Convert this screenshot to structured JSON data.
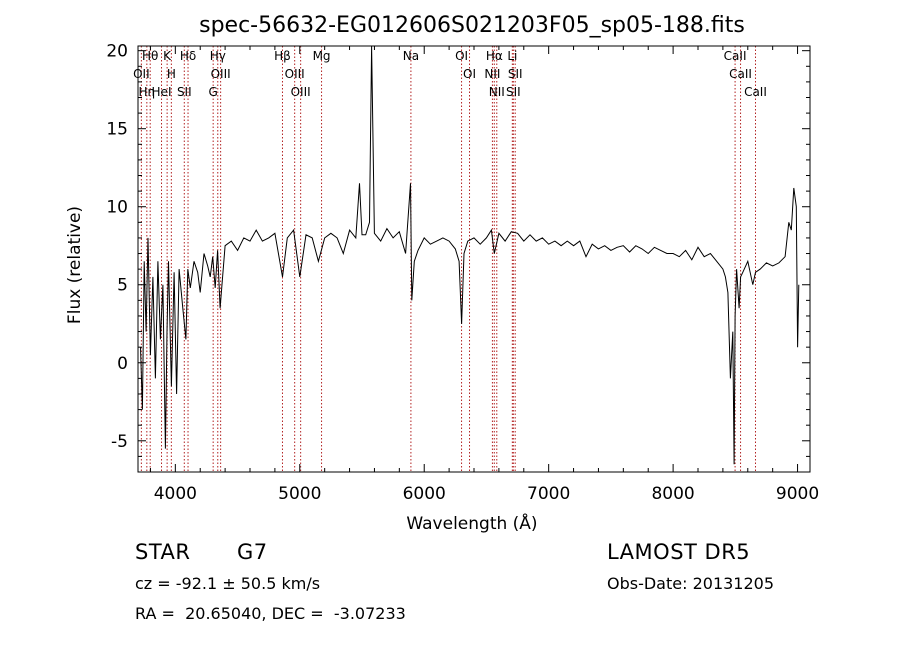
{
  "chart_data": {
    "type": "line",
    "title": "spec-56632-EG012606S021203F05_sp05-188.fits",
    "xlabel": "Wavelength (Å)",
    "ylabel": "Flux (relative)",
    "xlim": [
      3700,
      9100
    ],
    "ylim": [
      -7,
      20.3
    ],
    "xticks": [
      4000,
      5000,
      6000,
      7000,
      8000,
      9000
    ],
    "yticks": [
      -5,
      0,
      5,
      10,
      15,
      20
    ],
    "grid": false,
    "line_color": "#000000",
    "marker_color": "#b22222",
    "series": [
      {
        "x": [
          3720,
          3735,
          3750,
          3765,
          3780,
          3800,
          3820,
          3840,
          3860,
          3880,
          3900,
          3920,
          3933,
          3945,
          3968,
          3990,
          4010,
          4030,
          4060,
          4085,
          4100,
          4120,
          4150,
          4180,
          4200,
          4230,
          4260,
          4280,
          4300,
          4320,
          4340,
          4360,
          4400,
          4450,
          4500,
          4550,
          4600,
          4650,
          4700,
          4750,
          4800,
          4861,
          4900,
          4950,
          5000,
          5050,
          5100,
          5150,
          5200,
          5250,
          5300,
          5350,
          5400,
          5450,
          5480,
          5500,
          5530,
          5560,
          5577,
          5600,
          5650,
          5700,
          5750,
          5800,
          5850,
          5890,
          5900,
          5920,
          5950,
          6000,
          6050,
          6100,
          6150,
          6200,
          6250,
          6280,
          6300,
          6320,
          6350,
          6400,
          6450,
          6500,
          6540,
          6563,
          6600,
          6650,
          6700,
          6750,
          6800,
          6850,
          6900,
          6950,
          7000,
          7050,
          7100,
          7150,
          7200,
          7250,
          7300,
          7350,
          7400,
          7450,
          7500,
          7550,
          7600,
          7650,
          7700,
          7750,
          7800,
          7850,
          7900,
          7950,
          8000,
          8050,
          8100,
          8150,
          8200,
          8250,
          8300,
          8350,
          8400,
          8420,
          8440,
          8460,
          8480,
          8490,
          8498,
          8510,
          8530,
          8542,
          8560,
          8600,
          8640,
          8662,
          8700,
          8750,
          8800,
          8850,
          8900,
          8930,
          8950,
          8970,
          8990,
          9000,
          9010
        ],
        "y": [
          1.0,
          -3.0,
          6.5,
          2.0,
          8.0,
          0.5,
          5.5,
          -1.0,
          6.5,
          1.5,
          5.0,
          -5.5,
          2.0,
          6.5,
          -1.5,
          5.8,
          -2.0,
          6.0,
          3.5,
          1.5,
          6.0,
          4.8,
          6.5,
          5.8,
          4.5,
          7.0,
          6.2,
          5.5,
          6.8,
          4.8,
          7.2,
          3.5,
          7.5,
          7.8,
          7.2,
          8.0,
          7.8,
          8.5,
          7.8,
          8.0,
          8.3,
          5.5,
          8.0,
          8.5,
          5.5,
          8.2,
          8.0,
          6.5,
          8.0,
          8.3,
          8.0,
          7.0,
          8.5,
          8.0,
          11.5,
          8.2,
          8.2,
          9.0,
          20.3,
          8.3,
          7.8,
          8.6,
          8.0,
          8.4,
          7.0,
          11.5,
          4.0,
          6.5,
          7.2,
          8.0,
          7.6,
          7.8,
          8.0,
          7.8,
          7.3,
          6.5,
          2.5,
          7.0,
          7.8,
          8.0,
          7.6,
          8.0,
          8.5,
          7.0,
          8.3,
          7.8,
          8.4,
          8.3,
          7.8,
          8.2,
          7.8,
          8.0,
          7.6,
          7.8,
          7.5,
          7.8,
          7.5,
          7.8,
          6.8,
          7.6,
          7.3,
          7.5,
          7.2,
          7.4,
          7.5,
          7.1,
          7.5,
          7.3,
          7.0,
          7.4,
          7.2,
          7.0,
          7.0,
          6.8,
          7.2,
          6.6,
          7.4,
          6.8,
          7.0,
          6.5,
          6.0,
          5.5,
          4.5,
          -1.0,
          2.0,
          -6.5,
          3.0,
          6.0,
          3.5,
          5.5,
          5.8,
          6.5,
          5.0,
          5.8,
          6.0,
          6.4,
          6.2,
          6.4,
          6.8,
          9.0,
          8.5,
          11.2,
          10.0,
          1.0,
          5.0
        ]
      }
    ],
    "line_markers": [
      {
        "x": 3798,
        "label": "Hθ"
      },
      {
        "x": 3727,
        "label": "OII"
      },
      {
        "x": 3771,
        "label": "Hη"
      },
      {
        "x": 3889,
        "label": "HeI"
      },
      {
        "x": 3934,
        "label": "K"
      },
      {
        "x": 3968,
        "label": "H"
      },
      {
        "x": 4102,
        "label": "Hδ"
      },
      {
        "x": 4072,
        "label": "SII"
      },
      {
        "x": 4341,
        "label": "Hγ"
      },
      {
        "x": 4364,
        "label": "OIII"
      },
      {
        "x": 4304,
        "label": "G"
      },
      {
        "x": 4861,
        "label": "Hβ"
      },
      {
        "x": 4959,
        "label": "OIII"
      },
      {
        "x": 5007,
        "label": "OIII"
      },
      {
        "x": 5175,
        "label": "Mg"
      },
      {
        "x": 5893,
        "label": "Na"
      },
      {
        "x": 6300,
        "label": "OI"
      },
      {
        "x": 6364,
        "label": "OI"
      },
      {
        "x": 6563,
        "label": "Hα"
      },
      {
        "x": 6548,
        "label": "NII"
      },
      {
        "x": 6583,
        "label": "NII"
      },
      {
        "x": 6708,
        "label": "Li"
      },
      {
        "x": 6716,
        "label": "SII"
      },
      {
        "x": 6731,
        "label": "SII"
      },
      {
        "x": 8498,
        "label": "CaII"
      },
      {
        "x": 8542,
        "label": "CaII"
      },
      {
        "x": 8662,
        "label": "CaII"
      }
    ]
  },
  "info": {
    "object_class": "STAR",
    "subclass": "G7",
    "redshift_line": "cz = -92.1 ± 50.5 km/s",
    "coords_line": "RA =  20.65040, DEC =  -3.07233",
    "survey": "LAMOST DR5",
    "obs_date": "Obs-Date: 20131205"
  }
}
